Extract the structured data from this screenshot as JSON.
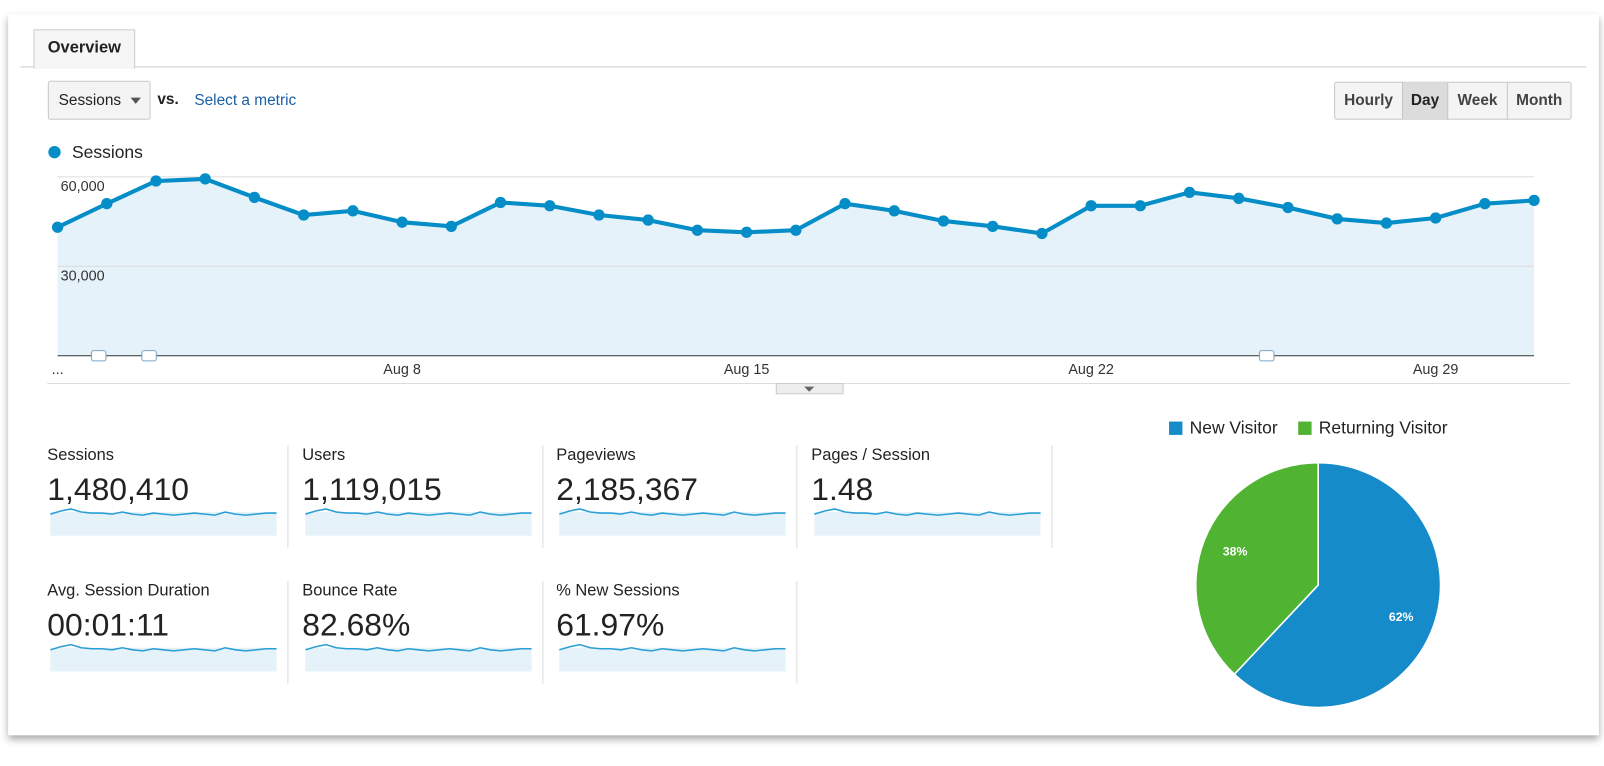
{
  "tab": "Overview",
  "metric_selector": {
    "selected": "Sessions",
    "vs": "vs.",
    "link": "Select a metric"
  },
  "granularity": [
    "Hourly",
    "Day",
    "Week",
    "Month"
  ],
  "chart_data": [
    {
      "type": "line",
      "categories": [
        "...",
        null,
        null,
        null,
        null,
        null,
        null,
        "Aug 8",
        null,
        null,
        null,
        null,
        null,
        null,
        "Aug 15",
        null,
        null,
        null,
        null,
        null,
        null,
        "Aug 22",
        null,
        null,
        null,
        null,
        null,
        null,
        "Aug 29",
        null,
        null
      ],
      "series": [
        {
          "name": "Sessions",
          "color": "#058dc7",
          "values": [
            43100,
            51000,
            58600,
            59300,
            53100,
            47200,
            48600,
            44800,
            43400,
            51400,
            50300,
            47200,
            45500,
            42100,
            41400,
            42100,
            51000,
            48600,
            45200,
            43400,
            41000,
            50300,
            50300,
            54800,
            52800,
            49700,
            45900,
            44500,
            46200,
            51000,
            52100
          ]
        }
      ],
      "ylim": [
        0,
        60000
      ],
      "yticks": [
        {
          "value": 30000,
          "label": "30,000"
        },
        {
          "value": 60000,
          "label": "60,000"
        }
      ],
      "grid": true,
      "area_color": "#e6f2f9"
    },
    {
      "type": "pie",
      "categories": [
        "New Visitor",
        "Returning Visitor"
      ],
      "values": [
        62,
        38
      ],
      "value_labels": [
        "62%",
        "38%"
      ],
      "colors": [
        "#158bca",
        "#50b432"
      ]
    }
  ],
  "metrics": [
    {
      "label": "Sessions",
      "value": "1,480,410"
    },
    {
      "label": "Users",
      "value": "1,119,015"
    },
    {
      "label": "Pageviews",
      "value": "2,185,367"
    },
    {
      "label": "Pages / Session",
      "value": "1.48"
    },
    {
      "label": "Avg. Session Duration",
      "value": "00:01:11"
    },
    {
      "label": "Bounce Rate",
      "value": "82.68%"
    },
    {
      "label": "% New Sessions",
      "value": "61.97%"
    }
  ]
}
